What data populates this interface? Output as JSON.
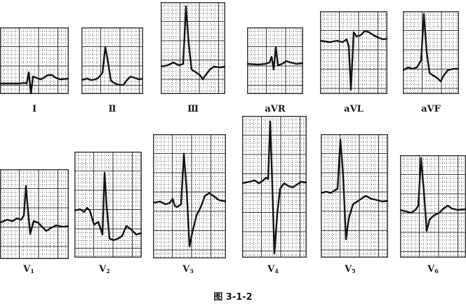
{
  "leads": [
    {
      "id": "I",
      "label": "Ⅰ",
      "sub": ""
    },
    {
      "id": "II",
      "label": "Ⅱ",
      "sub": ""
    },
    {
      "id": "III",
      "label": "Ⅲ",
      "sub": ""
    },
    {
      "id": "aVR",
      "label": "aVR",
      "sub": ""
    },
    {
      "id": "aVL",
      "label": "aVL",
      "sub": ""
    },
    {
      "id": "aVF",
      "label": "aVF",
      "sub": ""
    },
    {
      "id": "V1",
      "label": "V",
      "sub": "1"
    },
    {
      "id": "V2",
      "label": "V",
      "sub": "2"
    },
    {
      "id": "V3",
      "label": "V",
      "sub": "3"
    },
    {
      "id": "V4",
      "label": "V",
      "sub": "4"
    },
    {
      "id": "V5",
      "label": "V",
      "sub": "5"
    },
    {
      "id": "V6",
      "label": "V",
      "sub": "6"
    }
  ],
  "caption": "图 3-1-2",
  "colors": {
    "trace": "#141414",
    "grid": "#3c3c3c",
    "label": "#1a1a1a"
  }
}
